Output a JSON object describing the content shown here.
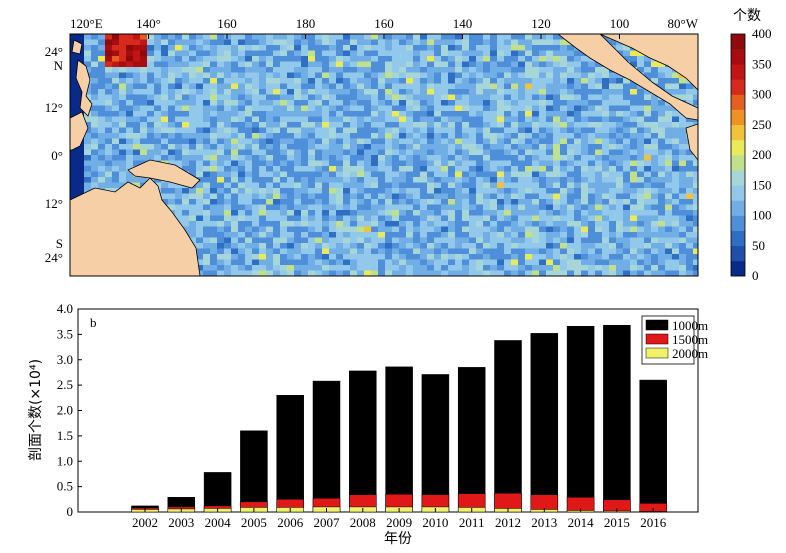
{
  "chart_data": [
    {
      "type": "heatmap",
      "title": "",
      "x_tick_labels": [
        "120°E",
        "140°",
        "160",
        "180",
        "160",
        "140",
        "120",
        "100",
        "80°W"
      ],
      "y_tick_labels": [
        "24°",
        "N",
        "12°",
        "0°",
        "12°",
        "S",
        "24°"
      ],
      "colorbar": {
        "title": "个数",
        "ticks": [
          "400",
          "350",
          "300",
          "250",
          "200",
          "150",
          "100",
          "50",
          "0"
        ],
        "range": [
          0,
          400
        ],
        "colors": [
          "#0a2a8a",
          "#1f4fa8",
          "#2e6fc4",
          "#4f8ed8",
          "#72aee6",
          "#92c8ea",
          "#a6d6d8",
          "#c0e08a",
          "#e8ea5a",
          "#f2c23a",
          "#ee9226",
          "#e46020",
          "#d62a1c",
          "#c21414",
          "#a80c10",
          "#8e0a0c"
        ]
      },
      "grid": false
    },
    {
      "type": "bar",
      "panel_label": "b",
      "categories": [
        "2002",
        "2003",
        "2004",
        "2005",
        "2006",
        "2007",
        "2008",
        "2009",
        "2010",
        "2011",
        "2012",
        "2013",
        "2014",
        "2015",
        "2016"
      ],
      "series": [
        {
          "name": "1000m",
          "color": "#000000",
          "values": [
            0.12,
            0.29,
            0.78,
            1.6,
            2.3,
            2.58,
            2.78,
            2.86,
            2.71,
            2.85,
            3.38,
            3.52,
            3.66,
            3.68,
            2.6
          ]
        },
        {
          "name": "1500m",
          "color": "#e01818",
          "values": [
            0.08,
            0.1,
            0.12,
            0.2,
            0.25,
            0.27,
            0.34,
            0.35,
            0.34,
            0.36,
            0.37,
            0.34,
            0.29,
            0.24,
            0.17
          ]
        },
        {
          "name": "2000m",
          "color": "#f0f06a",
          "values": [
            0.05,
            0.06,
            0.07,
            0.09,
            0.09,
            0.1,
            0.1,
            0.1,
            0.1,
            0.09,
            0.07,
            0.05,
            0.03,
            0.02,
            0.01
          ]
        }
      ],
      "xlabel": "年份",
      "ylabel": "剖面个数(×10⁴)",
      "ylim": [
        0,
        4.0
      ],
      "y_ticks": [
        "0",
        "0.5",
        "1.0",
        "1.5",
        "2.0",
        "2.5",
        "3.0",
        "3.5",
        "4.0"
      ],
      "legend": "top-right",
      "overlay": true
    }
  ]
}
